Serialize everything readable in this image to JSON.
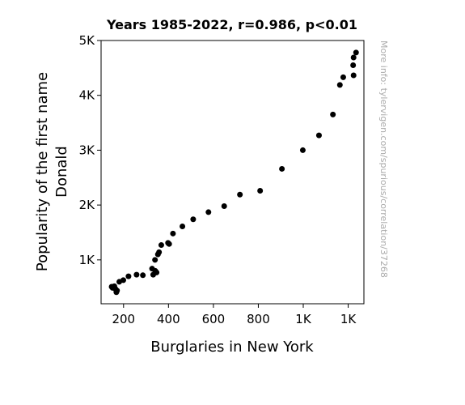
{
  "chart_data": {
    "type": "scatter",
    "title": "Years 1985-2022, r=0.986, p<0.01",
    "xlabel": "Burglaries in New York",
    "ylabel_lines": [
      "Popularity of the first name",
      "Donald"
    ],
    "watermark": "More info: tylervigen.com/spurious/correlation/37268",
    "xlim": [
      100,
      1270
    ],
    "ylim": [
      200,
      5000
    ],
    "xticks": [
      {
        "value": 200,
        "label": "200"
      },
      {
        "value": 400,
        "label": "400"
      },
      {
        "value": 600,
        "label": "600"
      },
      {
        "value": 800,
        "label": "800"
      },
      {
        "value": 1000,
        "label": "1K"
      },
      {
        "value": 1200,
        "label": "1K"
      }
    ],
    "yticks": [
      {
        "value": 1000,
        "label": "1K"
      },
      {
        "value": 2000,
        "label": "2K"
      },
      {
        "value": 3000,
        "label": "3K"
      },
      {
        "value": 4000,
        "label": "4K"
      },
      {
        "value": 5000,
        "label": "5K"
      }
    ],
    "grid": false,
    "point_color": "#000000",
    "points": [
      {
        "x": 1235,
        "y": 4780
      },
      {
        "x": 1224,
        "y": 4690
      },
      {
        "x": 1222,
        "y": 4550
      },
      {
        "x": 1224,
        "y": 4365
      },
      {
        "x": 1178,
        "y": 4330
      },
      {
        "x": 1163,
        "y": 4190
      },
      {
        "x": 1132,
        "y": 3650
      },
      {
        "x": 1070,
        "y": 3270
      },
      {
        "x": 998,
        "y": 3000
      },
      {
        "x": 905,
        "y": 2660
      },
      {
        "x": 808,
        "y": 2260
      },
      {
        "x": 718,
        "y": 2190
      },
      {
        "x": 648,
        "y": 1980
      },
      {
        "x": 578,
        "y": 1870
      },
      {
        "x": 510,
        "y": 1740
      },
      {
        "x": 462,
        "y": 1610
      },
      {
        "x": 420,
        "y": 1480
      },
      {
        "x": 398,
        "y": 1310
      },
      {
        "x": 403,
        "y": 1290
      },
      {
        "x": 368,
        "y": 1270
      },
      {
        "x": 358,
        "y": 1140
      },
      {
        "x": 353,
        "y": 1100
      },
      {
        "x": 340,
        "y": 1000
      },
      {
        "x": 327,
        "y": 840
      },
      {
        "x": 341,
        "y": 800
      },
      {
        "x": 347,
        "y": 770
      },
      {
        "x": 332,
        "y": 730
      },
      {
        "x": 286,
        "y": 720
      },
      {
        "x": 258,
        "y": 730
      },
      {
        "x": 222,
        "y": 700
      },
      {
        "x": 199,
        "y": 630
      },
      {
        "x": 181,
        "y": 600
      },
      {
        "x": 159,
        "y": 520
      },
      {
        "x": 147,
        "y": 510
      },
      {
        "x": 151,
        "y": 490
      },
      {
        "x": 164,
        "y": 470
      },
      {
        "x": 171,
        "y": 440
      },
      {
        "x": 168,
        "y": 410
      }
    ]
  }
}
